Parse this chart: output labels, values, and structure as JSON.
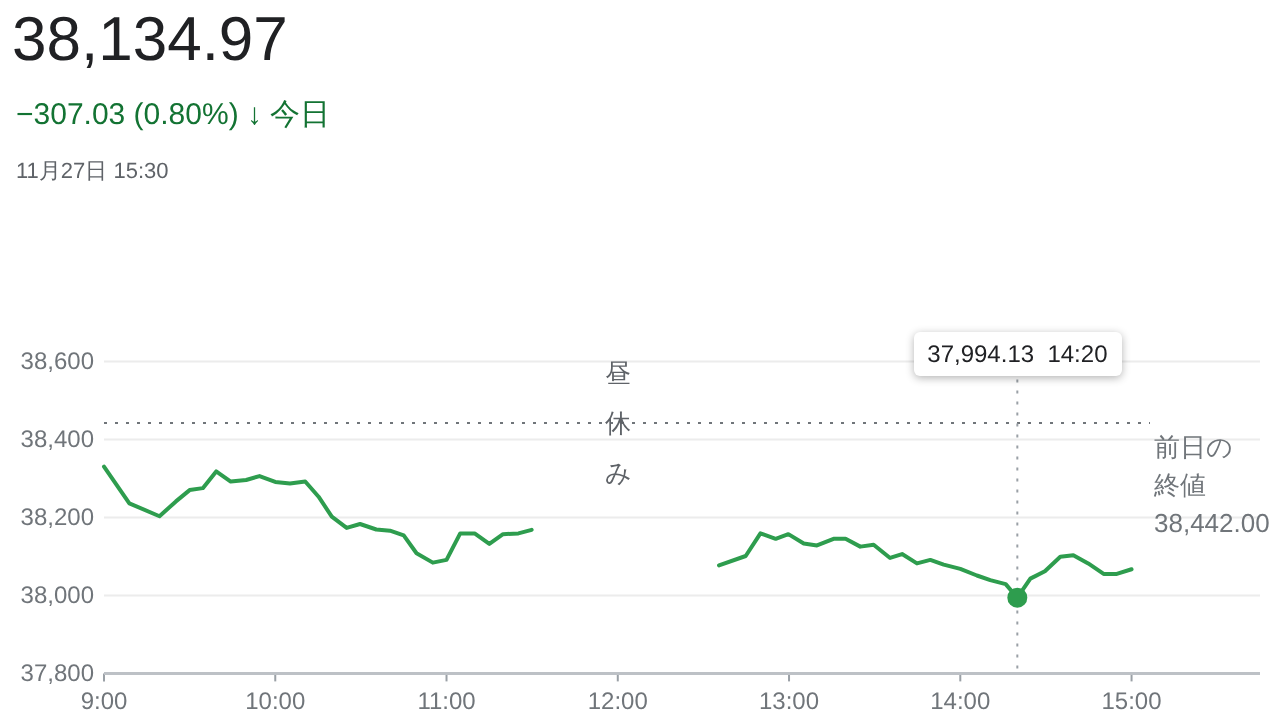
{
  "chart_data": {
    "type": "line",
    "title": "38,134.97",
    "subtitle": "−307.03 (0.80%) ↓ 今日",
    "annotations": [
      "11月27日 15:30",
      {
        "text": "昼休み",
        "x": 12,
        "y": 38442
      },
      {
        "text": "37,994.13  14:20",
        "x": 14.333
      }
    ],
    "xlim": [
      9,
      15.75
    ],
    "ylim": [
      37800,
      38600
    ],
    "xticks": [
      {
        "value": 9,
        "label": "9:00"
      },
      {
        "value": 10,
        "label": "10:00"
      },
      {
        "value": 11,
        "label": "11:00"
      },
      {
        "value": 12,
        "label": "12:00"
      },
      {
        "value": 13,
        "label": "13:00"
      },
      {
        "value": 14,
        "label": "14:00"
      },
      {
        "value": 15,
        "label": "15:00"
      }
    ],
    "yticks": [
      {
        "value": 37800,
        "label": "37,800"
      },
      {
        "value": 38000,
        "label": "38,000"
      },
      {
        "value": 38200,
        "label": "38,200"
      },
      {
        "value": 38400,
        "label": "38,400"
      },
      {
        "value": 38600,
        "label": "38,600"
      }
    ],
    "grid": "y",
    "marker": "none",
    "line_style": "solid",
    "ref_lines": [
      {
        "axis": "y",
        "value": 38442,
        "label": "前日の終値 38,442.00",
        "color": "#70757a",
        "line_style": "dotted"
      },
      {
        "axis": "x",
        "value": 14.333,
        "label": null,
        "color": "#9aa0a6",
        "line_style": "dotted"
      }
    ],
    "series": [
      {
        "color": "#2e9d4e",
        "x": [
          9,
          9.148,
          9.324,
          9.42,
          9.5,
          9.577,
          9.655,
          9.74,
          9.83,
          9.908,
          10,
          10.086,
          10.175,
          10.253,
          10.33,
          10.417,
          10.495,
          10.59,
          10.67,
          10.75,
          10.825,
          10.92,
          11,
          11.08,
          11.164,
          11.25,
          11.33,
          11.42,
          11.497
        ],
        "values": [
          38330,
          38236,
          38203,
          38241,
          38270,
          38275,
          38318,
          38292,
          38296,
          38306,
          38291,
          38287,
          38292,
          38253,
          38202,
          38173,
          38183,
          38169,
          38166,
          38154,
          38108,
          38084,
          38091,
          38159,
          38159,
          38132,
          38157,
          38159,
          38168
        ]
      },
      {
        "color": "#2e9d4e",
        "x": [
          12.591,
          12.747,
          12.833,
          12.922,
          12.996,
          13.086,
          13.163,
          13.26,
          13.33,
          13.416,
          13.494,
          13.59,
          13.66,
          13.747,
          13.825,
          13.903,
          14,
          14.097,
          14.175,
          14.265,
          14.333,
          14.409,
          14.494,
          14.584,
          14.66,
          14.747,
          14.837,
          14.914,
          15
        ],
        "values": [
          38077,
          38101,
          38159,
          38145,
          38157,
          38133,
          38128,
          38145,
          38145,
          38125,
          38130,
          38096,
          38106,
          38082,
          38091,
          38079,
          38068,
          38051,
          38039,
          38029,
          37994.13,
          38043,
          38062,
          38099,
          38103,
          38082,
          38055,
          38055,
          38067
        ]
      },
      {
        "type": "scatter",
        "marker": "circle",
        "color": "#2e9d4e",
        "x": [
          14.333
        ],
        "values": [
          37994.13
        ]
      }
    ]
  }
}
